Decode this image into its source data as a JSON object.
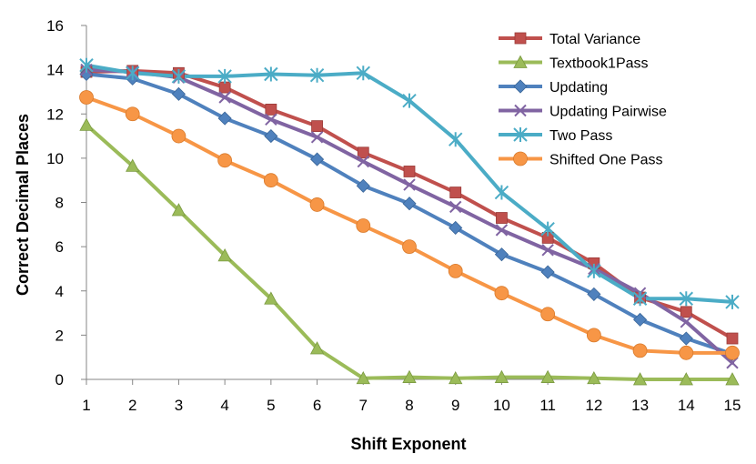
{
  "chart_data": {
    "type": "line",
    "title": "",
    "xlabel": "Shift Exponent",
    "ylabel": "Correct Decimal Places",
    "x": [
      1,
      2,
      3,
      4,
      5,
      6,
      7,
      8,
      9,
      10,
      11,
      12,
      13,
      14,
      15
    ],
    "xlim": [
      1,
      15
    ],
    "ylim": [
      0,
      16
    ],
    "yticks": [
      0,
      2,
      4,
      6,
      8,
      10,
      12,
      14,
      16
    ],
    "grid": false,
    "legend_position": "top-right",
    "series": [
      {
        "name": "Total Variance",
        "color": "#C0504D",
        "marker": "square",
        "values": [
          13.9,
          13.95,
          13.85,
          13.2,
          12.2,
          11.45,
          10.25,
          9.4,
          8.45,
          7.3,
          6.4,
          5.25,
          3.7,
          3.05,
          1.85
        ]
      },
      {
        "name": "Textbook1Pass",
        "color": "#9BBB59",
        "marker": "triangle",
        "values": [
          11.5,
          9.65,
          7.65,
          5.6,
          3.65,
          1.4,
          0.05,
          0.1,
          0.05,
          0.1,
          0.1,
          0.05,
          0.0,
          0.0,
          0.0
        ]
      },
      {
        "name": "Updating",
        "color": "#4F81BD",
        "marker": "diamond",
        "values": [
          13.8,
          13.6,
          12.9,
          11.8,
          11.0,
          9.95,
          8.75,
          7.95,
          6.85,
          5.65,
          4.85,
          3.85,
          2.7,
          1.85,
          1.15
        ]
      },
      {
        "name": "Updating Pairwise",
        "color": "#8064A2",
        "marker": "x",
        "values": [
          14.0,
          13.9,
          13.65,
          12.75,
          11.75,
          10.95,
          9.85,
          8.8,
          7.8,
          6.75,
          5.85,
          5.0,
          3.9,
          2.6,
          0.75
        ]
      },
      {
        "name": "Two Pass",
        "color": "#4BACC6",
        "marker": "star",
        "values": [
          14.2,
          13.85,
          13.7,
          13.7,
          13.8,
          13.75,
          13.85,
          12.6,
          10.85,
          8.45,
          6.8,
          4.9,
          3.65,
          3.65,
          3.5
        ]
      },
      {
        "name": "Shifted One Pass",
        "color": "#F79646",
        "marker": "circle",
        "values": [
          12.75,
          12.0,
          11.0,
          9.9,
          9.0,
          7.9,
          6.95,
          6.0,
          4.9,
          3.9,
          2.95,
          2.0,
          1.3,
          1.2,
          1.2
        ]
      }
    ]
  }
}
